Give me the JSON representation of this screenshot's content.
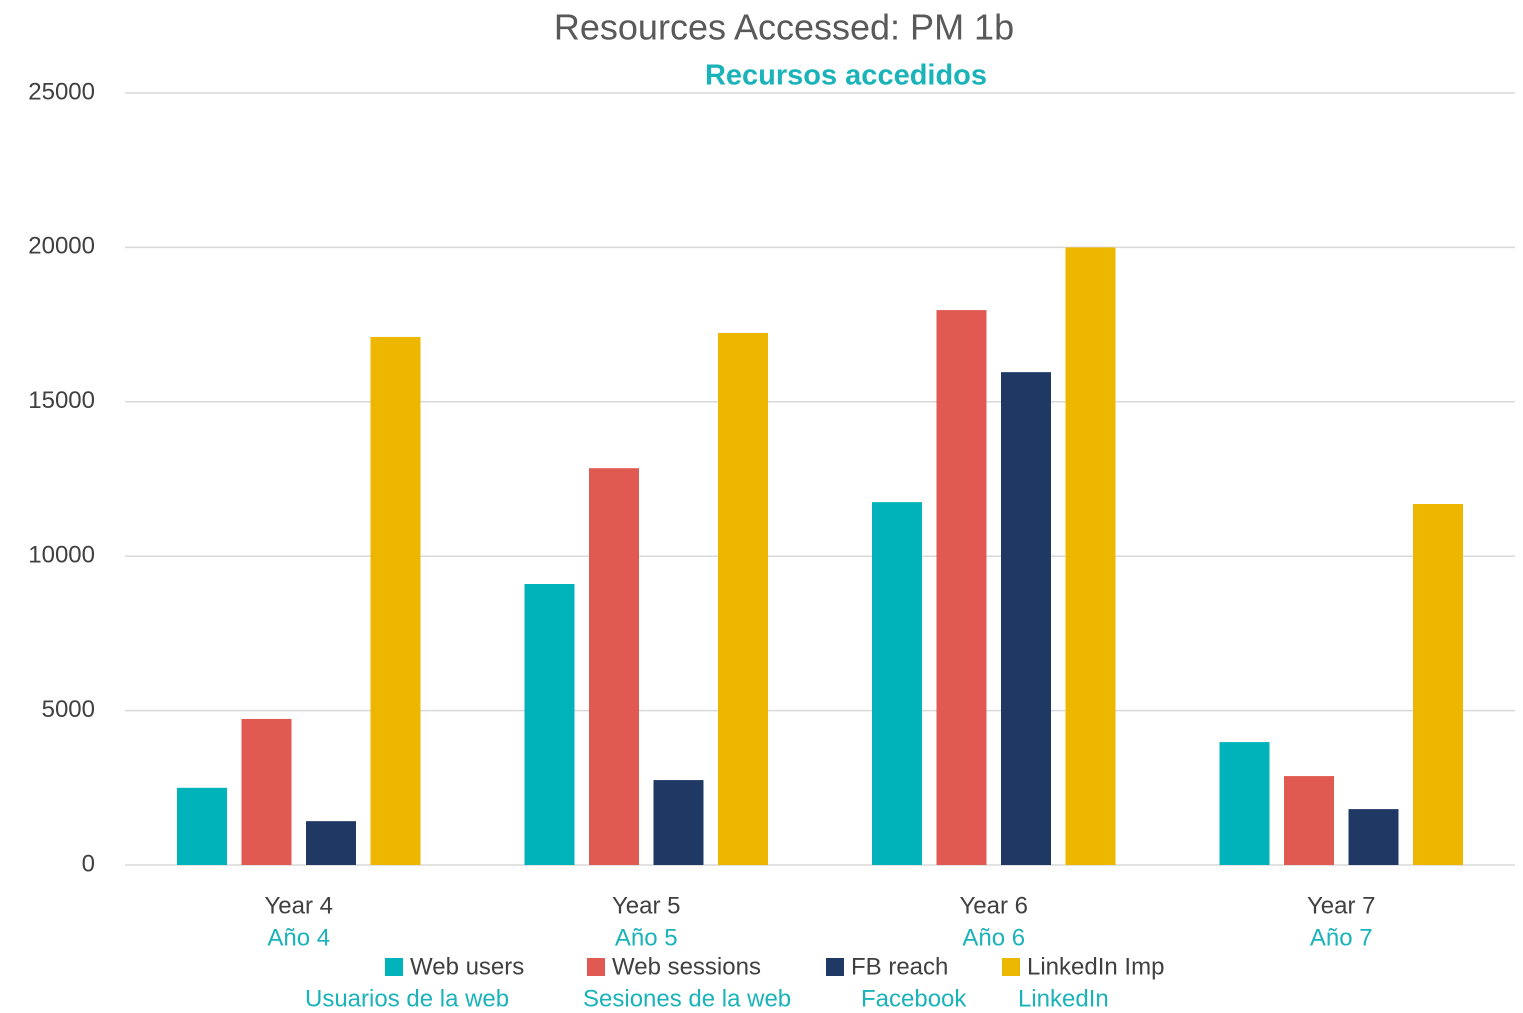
{
  "chart_data": {
    "type": "bar",
    "title": "Resources Accessed: PM 1b",
    "subtitle": "Recursos accedidos",
    "categories": [
      "Year 4",
      "Year 5",
      "Year 6",
      "Year 7"
    ],
    "categories_es": [
      "Año 4",
      "Año 5",
      "Año 6",
      "Año 7"
    ],
    "series": [
      {
        "name": "Web users",
        "name_es": "Usuarios de la web",
        "color": "#00b2b9",
        "values": [
          2500,
          9100,
          11750,
          3980
        ]
      },
      {
        "name": "Web sessions",
        "name_es": "Sesiones de la web",
        "color": "#e05a52",
        "values": [
          4730,
          12850,
          17970,
          2880
        ]
      },
      {
        "name": "FB reach",
        "name_es": "Facebook",
        "color": "#1f3864",
        "values": [
          1420,
          2750,
          15960,
          1810
        ]
      },
      {
        "name": "LinkedIn Imp",
        "name_es": "LinkedIn",
        "color": "#edb700",
        "values": [
          17100,
          17230,
          20000,
          11690
        ]
      }
    ],
    "ylim": [
      0,
      25000
    ],
    "yticks": [
      0,
      5000,
      10000,
      15000,
      20000,
      25000
    ],
    "grid": true,
    "legend": "bottom"
  }
}
